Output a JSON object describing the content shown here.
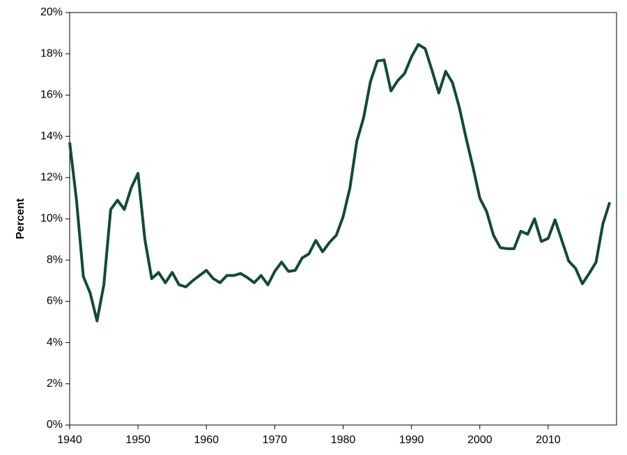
{
  "chart_data": {
    "type": "line",
    "y_label": "Percent",
    "x": [
      1940,
      1941,
      1942,
      1943,
      1944,
      1945,
      1946,
      1947,
      1948,
      1949,
      1950,
      1951,
      1952,
      1953,
      1954,
      1955,
      1956,
      1957,
      1958,
      1959,
      1960,
      1961,
      1962,
      1963,
      1964,
      1965,
      1966,
      1967,
      1968,
      1969,
      1970,
      1971,
      1972,
      1973,
      1974,
      1975,
      1976,
      1977,
      1978,
      1979,
      1980,
      1981,
      1982,
      1983,
      1984,
      1985,
      1986,
      1987,
      1988,
      1989,
      1990,
      1991,
      1992,
      1993,
      1994,
      1995,
      1996,
      1997,
      1998,
      1999,
      2000,
      2001,
      2002,
      2003,
      2004,
      2005,
      2006,
      2007,
      2008,
      2009,
      2010,
      2011,
      2012,
      2013,
      2014,
      2015,
      2016,
      2017,
      2018,
      2019
    ],
    "series": [
      {
        "color": "#114a3a",
        "values": [
          13.7,
          10.9,
          7.2,
          6.4,
          5.05,
          6.8,
          10.45,
          10.9,
          10.45,
          11.5,
          12.2,
          9.0,
          7.1,
          7.4,
          6.9,
          7.4,
          6.8,
          6.7,
          7.0,
          7.25,
          7.5,
          7.1,
          6.9,
          7.25,
          7.25,
          7.35,
          7.15,
          6.9,
          7.25,
          6.8,
          7.45,
          7.9,
          7.45,
          7.5,
          8.1,
          8.3,
          8.95,
          8.4,
          8.85,
          9.2,
          10.1,
          11.5,
          13.75,
          14.9,
          16.65,
          17.65,
          17.7,
          16.2,
          16.7,
          17.05,
          17.85,
          18.45,
          18.25,
          17.2,
          16.1,
          17.15,
          16.6,
          15.4,
          13.9,
          12.5,
          11.0,
          10.35,
          9.2,
          8.6,
          8.55,
          8.55,
          9.4,
          9.25,
          10.0,
          8.9,
          9.05,
          9.95,
          8.95,
          7.95,
          7.6,
          6.85,
          7.35,
          7.9,
          9.75,
          10.8
        ]
      }
    ],
    "xlim": [
      1940,
      2020
    ],
    "xticks": [
      1940,
      1950,
      1960,
      1970,
      1980,
      1990,
      2000,
      2010
    ],
    "ylim": [
      0,
      20
    ],
    "yticks": [
      {
        "value": 0,
        "label": "0%"
      },
      {
        "value": 2,
        "label": "2%"
      },
      {
        "value": 4,
        "label": "4%"
      },
      {
        "value": 6,
        "label": "6%"
      },
      {
        "value": 8,
        "label": "8%"
      },
      {
        "value": 10,
        "label": "10%"
      },
      {
        "value": 12,
        "label": "12%"
      },
      {
        "value": 14,
        "label": "14%"
      },
      {
        "value": 16,
        "label": "16%"
      },
      {
        "value": 18,
        "label": "18%"
      },
      {
        "value": 20,
        "label": "20%"
      }
    ],
    "grid": false
  }
}
